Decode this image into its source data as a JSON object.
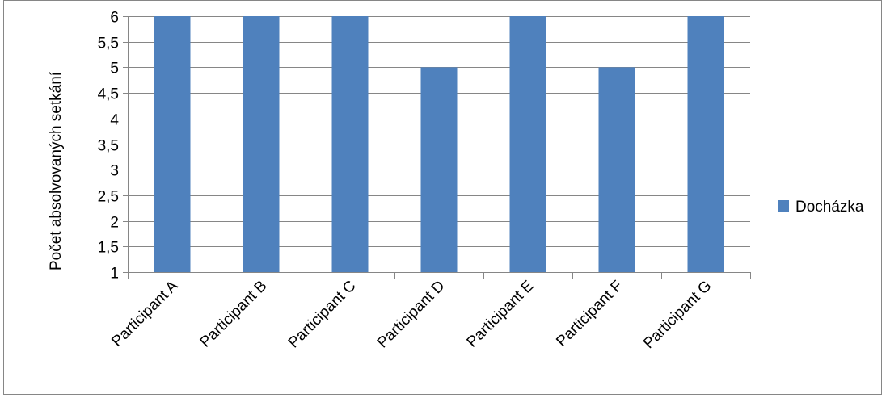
{
  "chart_data": {
    "type": "bar",
    "categories": [
      "Participant A",
      "Participant B",
      "Participant C",
      "Participant D",
      "Participant E",
      "Participant F",
      "Participant G"
    ],
    "series": [
      {
        "name": "Docházka",
        "values": [
          6,
          6,
          6,
          5,
          6,
          5,
          6
        ],
        "color": "#4F81BD"
      }
    ],
    "title": "",
    "xlabel": "",
    "ylabel": "Počet absolvovaných setkání",
    "ylim": [
      1,
      6
    ],
    "yticks": [
      1,
      1.5,
      2,
      2.5,
      3,
      3.5,
      4,
      4.5,
      5,
      5.5,
      6
    ],
    "ytick_labels": [
      "1",
      "1,5",
      "2",
      "2,5",
      "3",
      "3,5",
      "4",
      "4,5",
      "5",
      "5,5",
      "6"
    ],
    "grid": true,
    "legend_position": "right"
  },
  "colors": {
    "gridline": "#868686",
    "axis": "#868686"
  }
}
